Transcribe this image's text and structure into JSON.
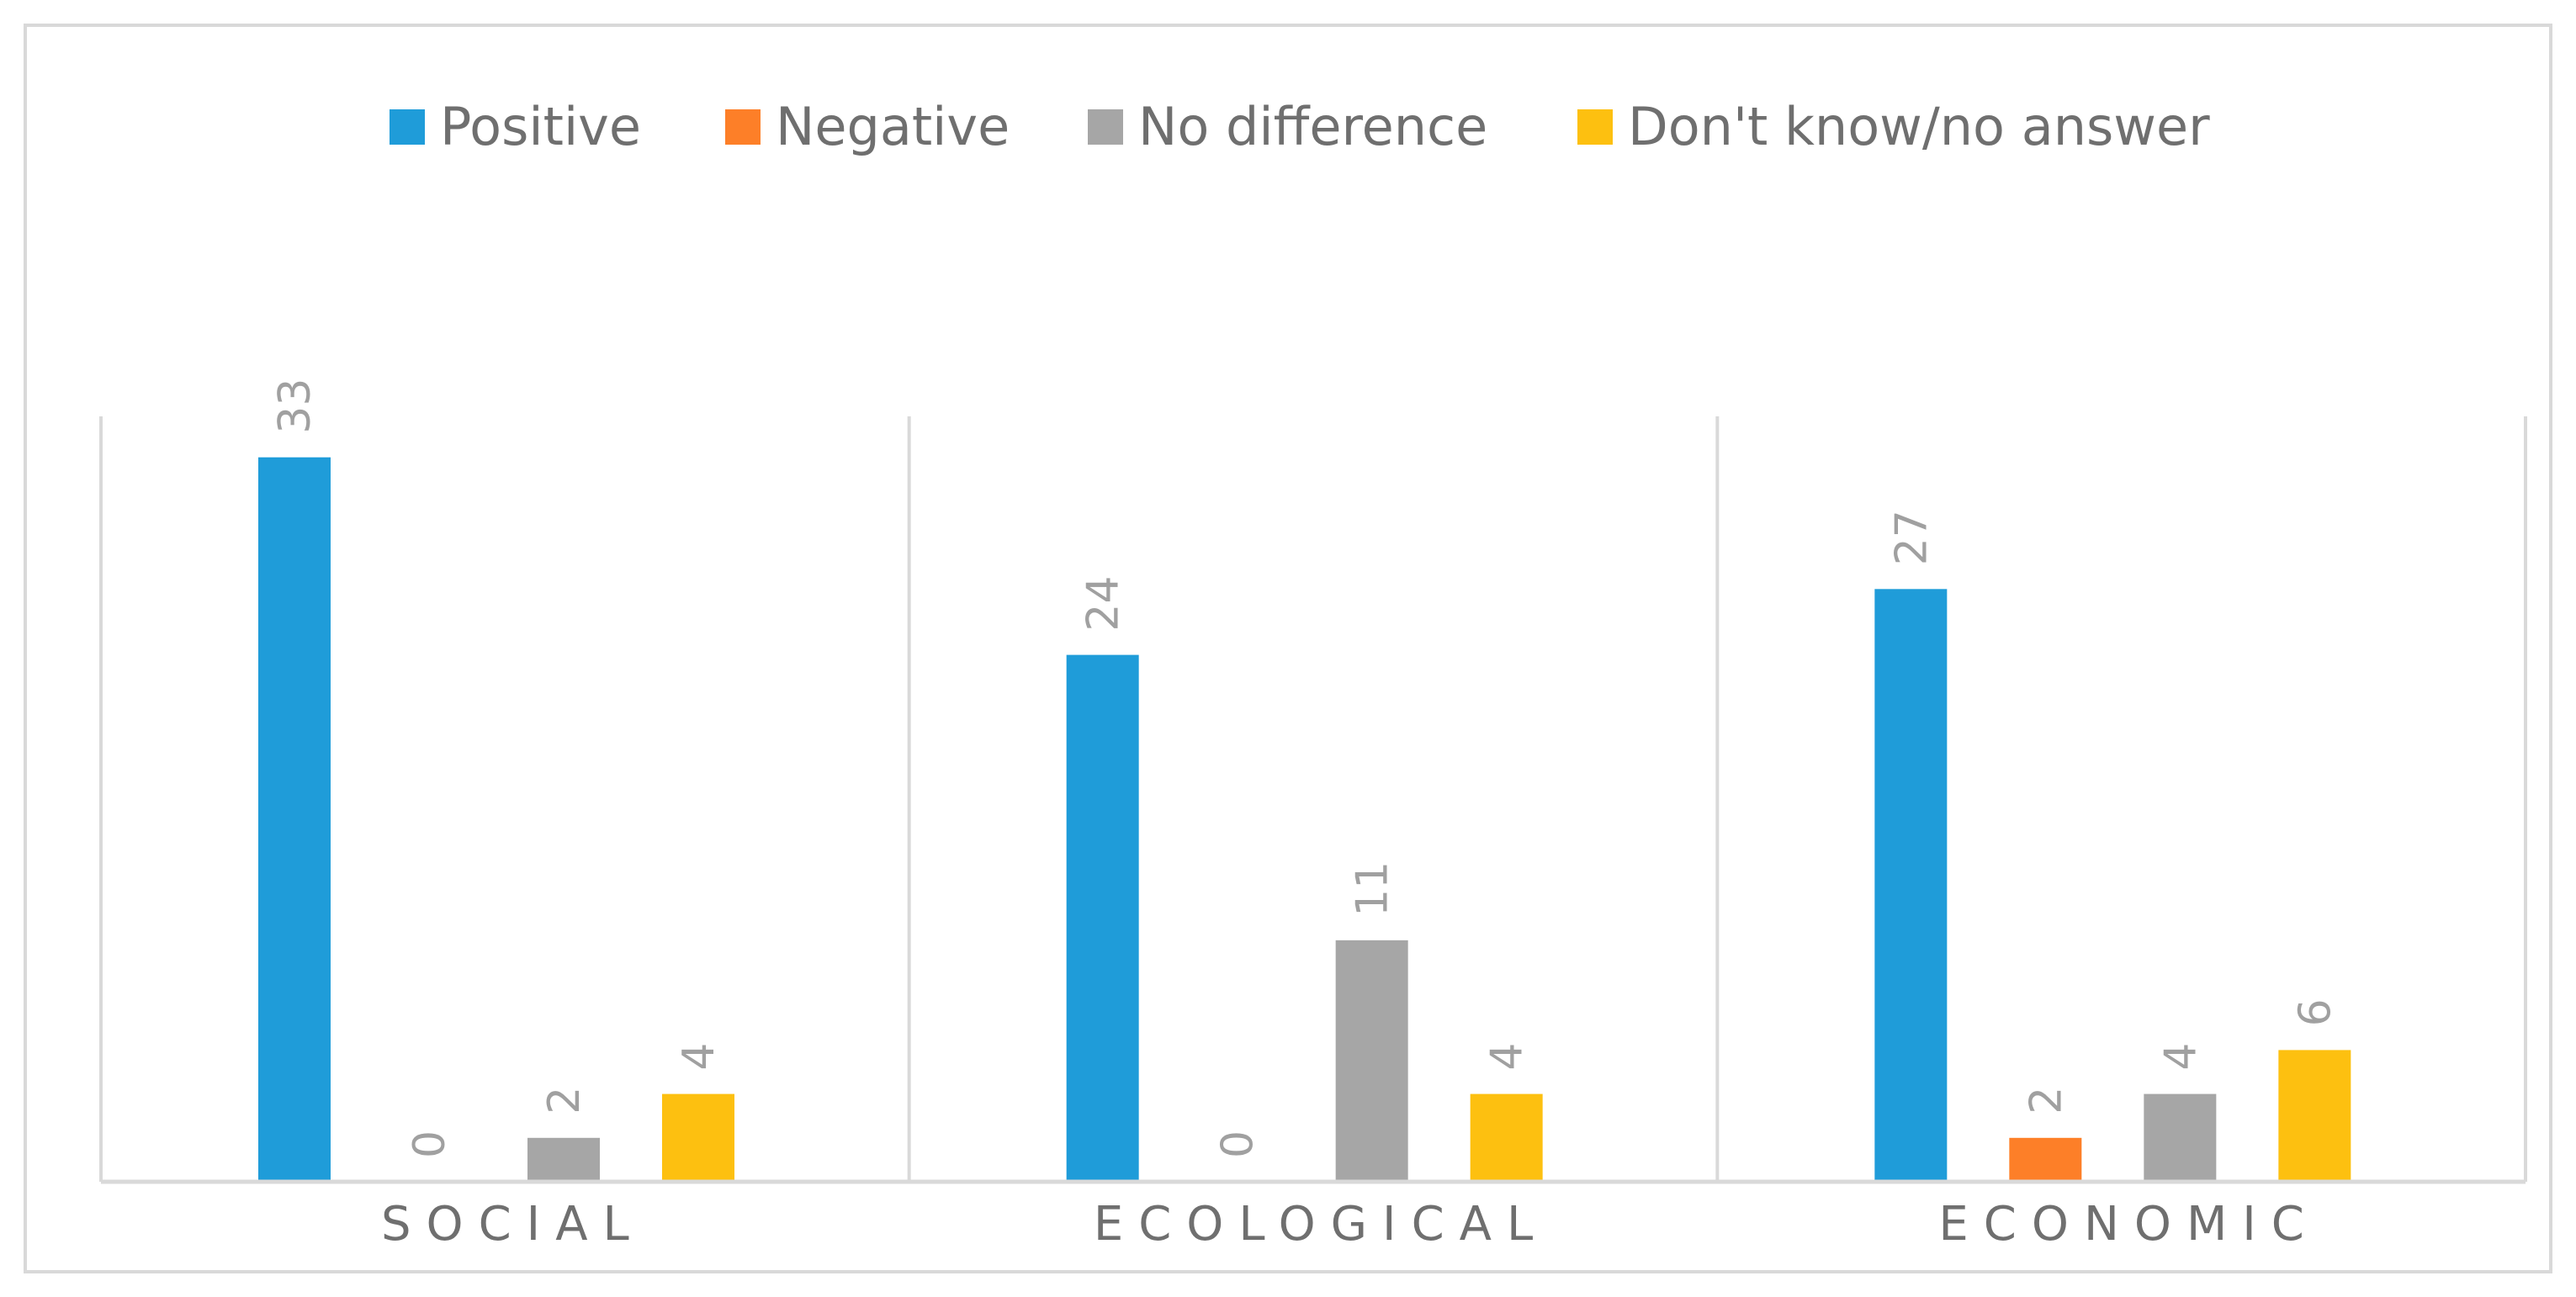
{
  "chart_data": {
    "type": "bar",
    "title": "",
    "xlabel": "",
    "ylabel": "",
    "categories": [
      "SOCIAL",
      "ECOLOGICAL",
      "ECONOMIC"
    ],
    "series": [
      {
        "name": "Positive",
        "color": "#1f9cd9",
        "values": [
          33,
          24,
          27
        ]
      },
      {
        "name": "Negative",
        "color": "#fd7f28",
        "values": [
          0,
          0,
          2
        ]
      },
      {
        "name": "No difference",
        "color": "#a6a6a6",
        "values": [
          2,
          11,
          4
        ]
      },
      {
        "name": "Don't know/no answer",
        "color": "#fdc010",
        "values": [
          4,
          4,
          6
        ]
      }
    ],
    "ylim": [
      0,
      35
    ],
    "grid": false,
    "legend": "top-center",
    "data_labels": true
  }
}
